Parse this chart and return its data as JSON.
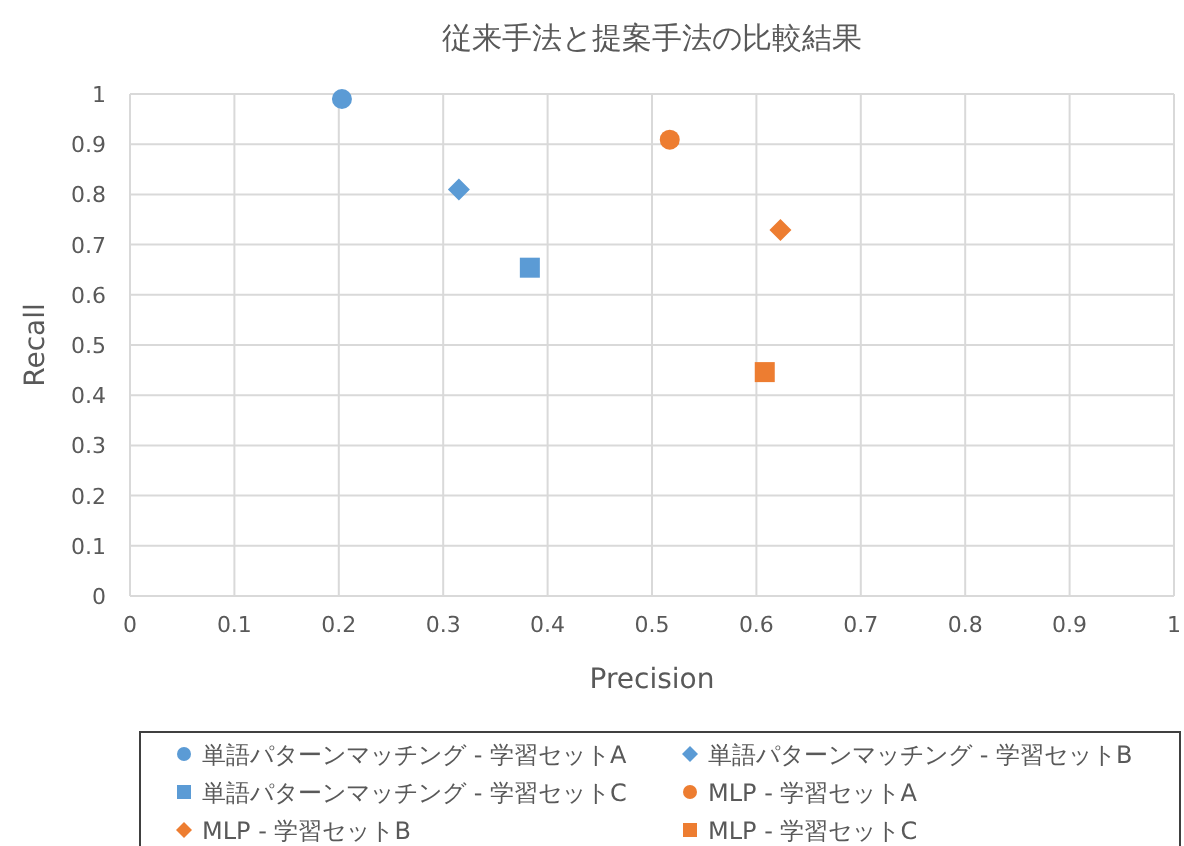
{
  "chart_data": {
    "type": "scatter",
    "title": "従来手法と提案手法の比較結果",
    "xlabel": "Precision",
    "ylabel": "Recall",
    "xlim": [
      0,
      1
    ],
    "ylim": [
      0,
      1
    ],
    "xticks": [
      0,
      0.1,
      0.2,
      0.3,
      0.4,
      0.5,
      0.6,
      0.7,
      0.8,
      0.9,
      1
    ],
    "yticks": [
      0,
      0.1,
      0.2,
      0.3,
      0.4,
      0.5,
      0.6,
      0.7,
      0.8,
      0.9,
      1
    ],
    "grid": true,
    "legend": "bottom",
    "series": [
      {
        "name": "単語パターンマッチング - 学習セットA",
        "color": "#5b9bd5",
        "marker": "circle",
        "x": [
          0.203
        ],
        "values": [
          0.99
        ]
      },
      {
        "name": "単語パターンマッチング - 学習セットB",
        "color": "#5b9bd5",
        "marker": "diamond",
        "x": [
          0.315
        ],
        "values": [
          0.81
        ]
      },
      {
        "name": "単語パターンマッチング - 学習セットC",
        "color": "#5b9bd5",
        "marker": "square",
        "x": [
          0.383
        ],
        "values": [
          0.654
        ]
      },
      {
        "name": "MLP - 学習セットA",
        "color": "#ed7d31",
        "marker": "circle",
        "x": [
          0.517
        ],
        "values": [
          0.909
        ]
      },
      {
        "name": "MLP - 学習セットB",
        "color": "#ed7d31",
        "marker": "diamond",
        "x": [
          0.623
        ],
        "values": [
          0.729
        ]
      },
      {
        "name": "MLP - 学習セットC",
        "color": "#ed7d31",
        "marker": "square",
        "x": [
          0.608
        ],
        "values": [
          0.446
        ]
      }
    ]
  }
}
